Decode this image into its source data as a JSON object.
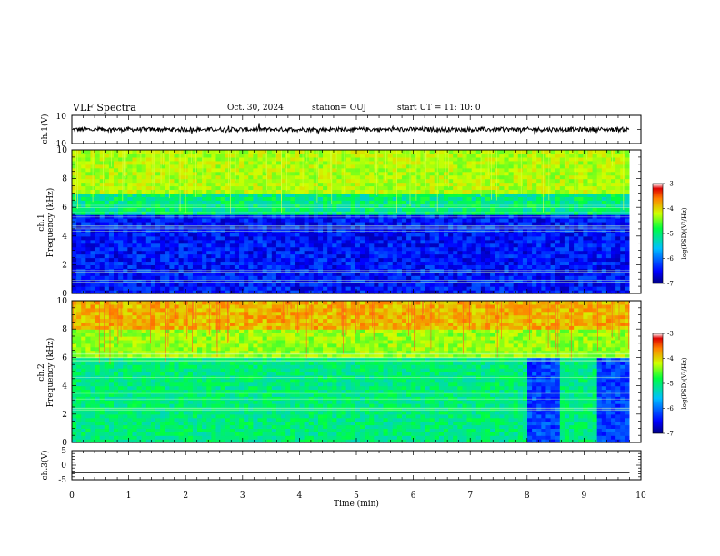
{
  "header": {
    "title": "VLF Spectra",
    "date": "Oct. 30, 2024",
    "station": "station= OUJ",
    "start": "start  UT =  11: 10: 0"
  },
  "chart_data": [
    {
      "type": "line",
      "name": "ch1-waveform",
      "ylabel": "ch.1(V)",
      "ylim": [
        -10,
        10
      ],
      "yticks": [
        "10",
        "-10"
      ],
      "xlim": [
        0,
        10
      ],
      "trace": "noisy waveform centered near 0 V, amplitude about ±2 V, ending at 9.8 min"
    },
    {
      "type": "heatmap",
      "name": "ch1-spectrogram",
      "ylabel_line1": "ch.1",
      "ylabel_line2": "Frequency (kHz)",
      "ylim": [
        0,
        10
      ],
      "yticks": [
        "0",
        "2",
        "4",
        "6",
        "8",
        "10"
      ],
      "xlim": [
        0,
        10
      ],
      "data_end_min": 9.8,
      "colorbar": {
        "label": "log(PSD)(V²/Hz)",
        "range": [
          -7,
          -3
        ],
        "ticks": [
          "-3",
          "-4",
          "-5",
          "-6",
          "-7"
        ]
      }
    },
    {
      "type": "heatmap",
      "name": "ch2-spectrogram",
      "ylabel_line1": "ch.2",
      "ylabel_line2": "Frequency (kHz)",
      "ylim": [
        0,
        10
      ],
      "yticks": [
        "0",
        "2",
        "4",
        "6",
        "8",
        "10"
      ],
      "xlim": [
        0,
        10
      ],
      "data_end_min": 9.8,
      "colorbar": {
        "label": "log(PSD)(V²/Hz)",
        "range": [
          -7,
          -3
        ],
        "ticks": [
          "-3",
          "-4",
          "-5",
          "-6",
          "-7"
        ]
      }
    },
    {
      "type": "line",
      "name": "ch3-waveform",
      "ylabel": "ch.3(V)",
      "ylim": [
        -5,
        5
      ],
      "yticks": [
        "5",
        "0",
        "-5"
      ],
      "xlim": [
        0,
        10
      ],
      "trace": "flat line at about -2.5 V from 0 to 9.8 min"
    }
  ],
  "xaxis": {
    "label": "Time (min)",
    "ticks": [
      "0",
      "1",
      "2",
      "3",
      "4",
      "5",
      "6",
      "7",
      "8",
      "9",
      "10"
    ]
  },
  "colors": {
    "ink": "#000000",
    "background": "#ffffff"
  }
}
